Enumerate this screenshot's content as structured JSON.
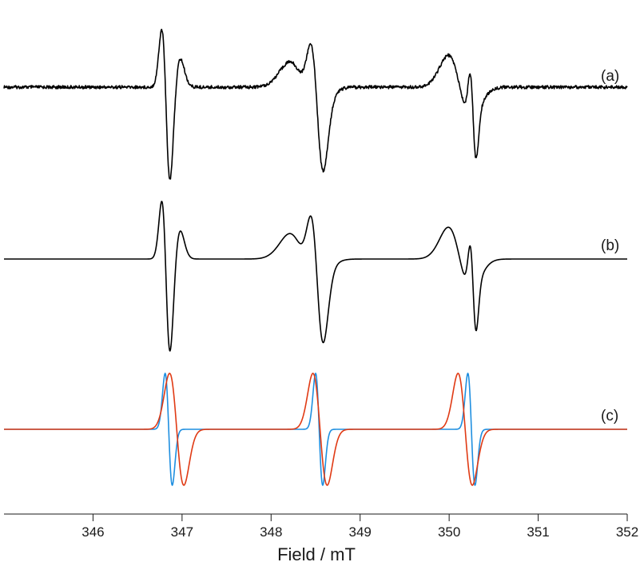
{
  "chart_data": {
    "type": "line",
    "title": "",
    "xlabel": "Field / mT",
    "ylabel": "",
    "xlim": [
      345,
      352
    ],
    "xticks": [
      346,
      347,
      348,
      349,
      350,
      351,
      352
    ],
    "grid": false,
    "panels": [
      {
        "label": "(a)",
        "kind": "experimental",
        "noise": true,
        "series": [
          {
            "color": "#000000",
            "lines": [
              {
                "center": 346.82,
                "width": 0.045,
                "amp": 1.0
              },
              {
                "center": 346.92,
                "width": 0.06,
                "amp": -0.45
              },
              {
                "center": 348.52,
                "width": 0.07,
                "amp": 1.0
              },
              {
                "center": 348.36,
                "width": 0.15,
                "amp": 0.4
              },
              {
                "center": 350.12,
                "width": 0.13,
                "amp": 0.5
              },
              {
                "center": 350.27,
                "width": 0.035,
                "amp": 0.7
              }
            ]
          }
        ]
      },
      {
        "label": "(b)",
        "kind": "simulated",
        "noise": false,
        "series": [
          {
            "color": "#000000",
            "lines": [
              {
                "center": 346.82,
                "width": 0.045,
                "amp": 1.0
              },
              {
                "center": 346.92,
                "width": 0.06,
                "amp": -0.45
              },
              {
                "center": 348.52,
                "width": 0.07,
                "amp": 1.0
              },
              {
                "center": 348.36,
                "width": 0.15,
                "amp": 0.4
              },
              {
                "center": 350.12,
                "width": 0.13,
                "amp": 0.5
              },
              {
                "center": 350.27,
                "width": 0.035,
                "amp": 0.7
              }
            ]
          }
        ]
      },
      {
        "label": "(c)",
        "kind": "components",
        "noise": false,
        "series": [
          {
            "color": "#1f8fe0",
            "lines": [
              {
                "center": 346.85,
                "width": 0.04,
                "amp": 1.0
              },
              {
                "center": 348.54,
                "width": 0.04,
                "amp": 1.0
              },
              {
                "center": 350.25,
                "width": 0.04,
                "amp": 1.0
              }
            ]
          },
          {
            "color": "#e03a14",
            "lines": [
              {
                "center": 346.94,
                "width": 0.08,
                "amp": 0.96
              },
              {
                "center": 348.55,
                "width": 0.08,
                "amp": 0.96
              },
              {
                "center": 350.18,
                "width": 0.08,
                "amp": 0.96
              }
            ]
          }
        ]
      }
    ]
  }
}
